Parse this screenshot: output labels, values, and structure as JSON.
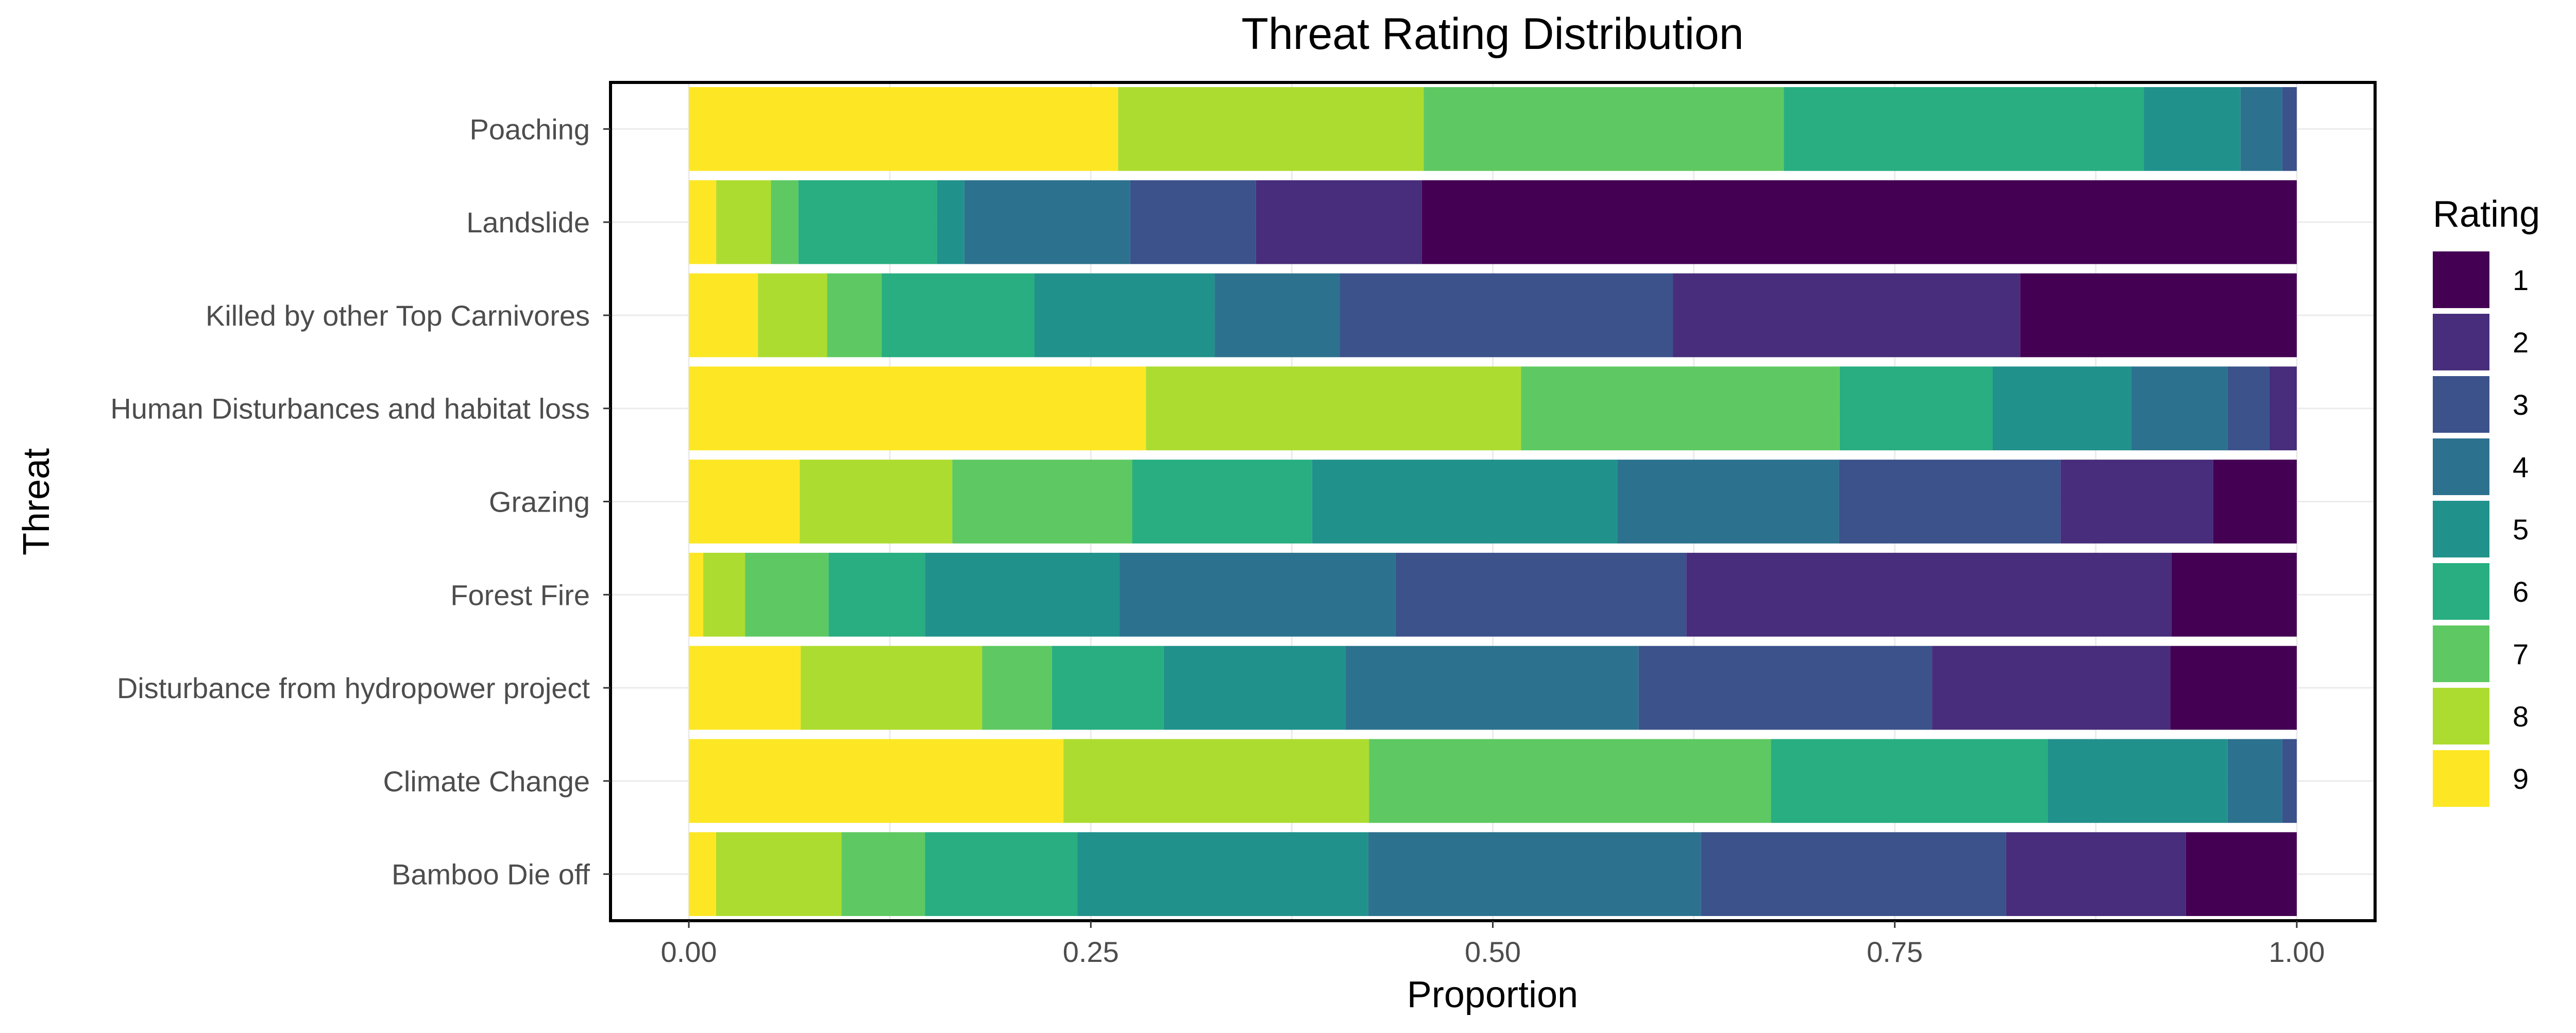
{
  "chart_data": {
    "type": "bar",
    "orientation": "horizontal",
    "stacked": true,
    "title": "Threat Rating Distribution",
    "xlabel": "Proportion",
    "ylabel": "Threat",
    "xlim": [
      0,
      1
    ],
    "x_ticks": [
      "0.00",
      "0.25",
      "0.50",
      "0.75",
      "1.00"
    ],
    "grid": true,
    "legend": {
      "title": "Rating",
      "position": "right",
      "entries": [
        "1",
        "2",
        "3",
        "4",
        "5",
        "6",
        "7",
        "8",
        "9"
      ]
    },
    "colors": {
      "1": "#440154",
      "2": "#472d7b",
      "3": "#3b528b",
      "4": "#2c728e",
      "5": "#21918c",
      "6": "#28ae80",
      "7": "#5ec962",
      "8": "#addc30",
      "9": "#fde725"
    },
    "categories": [
      "Bamboo Die off",
      "Climate Change",
      "Disturbance from hydropower project",
      "Forest Fire",
      "Grazing",
      "Human Disturbances and habitat loss",
      "Killed by other Top Carnivores",
      "Landslide",
      "Poaching"
    ],
    "series": [
      {
        "name": "9",
        "values": [
          0.017,
          0.233,
          0.069,
          0.009,
          0.069,
          0.284,
          0.043,
          0.017,
          0.267
        ]
      },
      {
        "name": "8",
        "values": [
          0.078,
          0.19,
          0.112,
          0.026,
          0.095,
          0.233,
          0.043,
          0.034,
          0.19
        ]
      },
      {
        "name": "7",
        "values": [
          0.052,
          0.25,
          0.043,
          0.052,
          0.112,
          0.198,
          0.034,
          0.017,
          0.224
        ]
      },
      {
        "name": "6",
        "values": [
          0.095,
          0.172,
          0.069,
          0.06,
          0.112,
          0.095,
          0.095,
          0.086,
          0.224
        ]
      },
      {
        "name": "5",
        "values": [
          0.181,
          0.112,
          0.112,
          0.121,
          0.19,
          0.086,
          0.112,
          0.017,
          0.06
        ]
      },
      {
        "name": "4",
        "values": [
          0.207,
          0.034,
          0.181,
          0.172,
          0.138,
          0.06,
          0.078,
          0.103,
          0.026
        ]
      },
      {
        "name": "3",
        "values": [
          0.19,
          0.009,
          0.181,
          0.181,
          0.138,
          0.026,
          0.207,
          0.078,
          0.009
        ]
      },
      {
        "name": "2",
        "values": [
          0.112,
          0.0,
          0.147,
          0.302,
          0.095,
          0.017,
          0.216,
          0.103,
          0.0
        ]
      },
      {
        "name": "1",
        "values": [
          0.069,
          0.0,
          0.078,
          0.078,
          0.052,
          0.0,
          0.172,
          0.543,
          0.0
        ]
      }
    ]
  }
}
